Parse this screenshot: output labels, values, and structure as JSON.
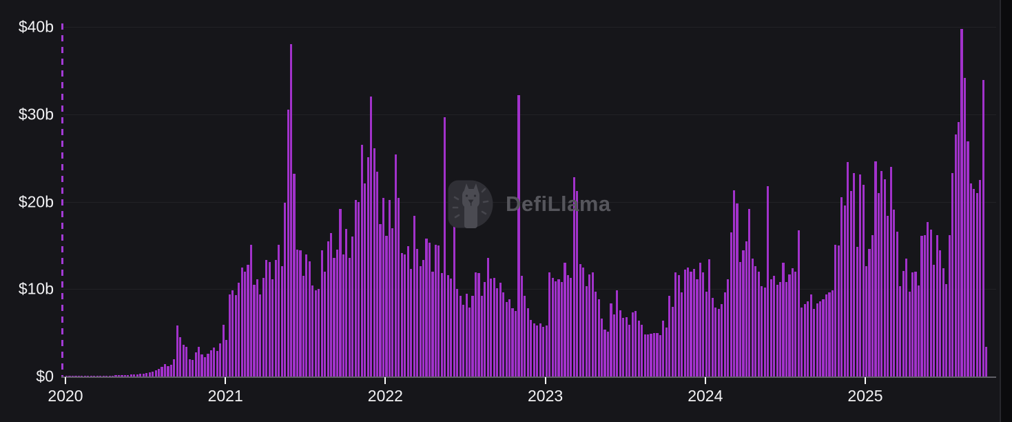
{
  "watermark": {
    "brand": "DefiLlama",
    "icon": "defillama-llama-logo"
  },
  "chart_data": {
    "type": "bar",
    "title": "",
    "unit": "USD billions",
    "granularity": "weekly",
    "legend": "none",
    "grid": "horizontal, faint",
    "bar_color": "#a232cb",
    "y_axis_dash_color": "#a33bd6",
    "x_axis": {
      "tick_labels": [
        "2020",
        "2021",
        "2022",
        "2023",
        "2024",
        "2025"
      ]
    },
    "y_axis": {
      "tick_labels": [
        "$0",
        "$10b",
        "$20b",
        "$30b",
        "$40b"
      ],
      "tick_values": [
        0,
        10,
        20,
        30,
        40
      ],
      "max": 40
    },
    "annotations": {
      "watermark": "DefiLlama"
    },
    "values": [
      0.02,
      0.02,
      0.03,
      0.03,
      0.03,
      0.04,
      0.04,
      0.05,
      0.05,
      0.06,
      0.07,
      0.08,
      0.08,
      0.09,
      0.1,
      0.11,
      0.12,
      0.13,
      0.15,
      0.16,
      0.18,
      0.2,
      0.22,
      0.25,
      0.28,
      0.32,
      0.38,
      0.45,
      0.55,
      0.7,
      0.9,
      1.1,
      1.4,
      1.15,
      1.35,
      2.0,
      5.8,
      4.5,
      3.6,
      3.4,
      2.0,
      1.9,
      2.8,
      3.4,
      2.5,
      2.2,
      2.6,
      3.0,
      3.3,
      2.9,
      3.8,
      5.9,
      4.2,
      9.4,
      9.9,
      9.3,
      10.7,
      12.5,
      12.0,
      12.8,
      15.1,
      10.5,
      11.1,
      9.4,
      11.3,
      13.3,
      13.1,
      11.1,
      13.3,
      15.1,
      12.6,
      19.9,
      30.5,
      38.0,
      23.2,
      14.5,
      14.4,
      11.5,
      14.0,
      13.2,
      10.4,
      9.9,
      10.0,
      14.4,
      12.0,
      15.5,
      16.4,
      13.6,
      14.5,
      19.2,
      14.0,
      16.9,
      13.6,
      16.0,
      20.2,
      20.0,
      26.5,
      22.1,
      25.1,
      32.0,
      26.1,
      23.4,
      17.4,
      20.4,
      16.1,
      20.2,
      17.0,
      25.4,
      20.4,
      14.1,
      14.0,
      14.9,
      12.3,
      18.4,
      14.6,
      12.6,
      13.3,
      15.8,
      15.3,
      12.0,
      15.1,
      15.0,
      11.8,
      29.7,
      11.6,
      11.2,
      21.1,
      10.0,
      9.2,
      8.2,
      9.5,
      7.9,
      9.2,
      11.9,
      11.8,
      9.2,
      10.8,
      13.6,
      11.2,
      11.3,
      10.1,
      10.7,
      9.6,
      8.5,
      8.8,
      7.8,
      7.5,
      32.2,
      11.5,
      9.2,
      7.8,
      6.5,
      6.1,
      5.8,
      6.1,
      5.7,
      5.8,
      11.9,
      11.3,
      10.9,
      11.1,
      10.8,
      13.0,
      11.6,
      11.3,
      22.8,
      21.2,
      12.9,
      12.5,
      10.3,
      11.7,
      11.9,
      9.7,
      8.8,
      6.6,
      5.4,
      5.1,
      8.4,
      7.1,
      9.9,
      7.6,
      6.7,
      6.8,
      5.9,
      7.3,
      7.5,
      6.4,
      5.9,
      4.8,
      4.8,
      4.9,
      5.0,
      5.0,
      4.7,
      6.4,
      5.6,
      9.2,
      8.0,
      11.9,
      11.6,
      9.6,
      12.2,
      12.5,
      12.0,
      12.3,
      11.1,
      13.0,
      11.9,
      9.7,
      13.4,
      9.0,
      7.9,
      7.7,
      8.3,
      9.6,
      11.1,
      16.5,
      21.3,
      19.8,
      13.1,
      14.4,
      15.5,
      19.2,
      13.5,
      12.6,
      12.0,
      10.3,
      10.2,
      21.8,
      11.1,
      11.5,
      10.5,
      10.8,
      13.0,
      10.8,
      11.7,
      12.4,
      12.0,
      16.7,
      7.9,
      8.3,
      8.6,
      9.4,
      7.7,
      8.4,
      8.6,
      8.8,
      9.4,
      9.6,
      9.9,
      15.1,
      15.0,
      20.5,
      19.6,
      24.5,
      21.2,
      23.3,
      14.8,
      23.1,
      21.9,
      12.6,
      14.6,
      16.2,
      24.6,
      21.0,
      23.5,
      22.6,
      18.4,
      24.0,
      19.1,
      16.6,
      10.3,
      12.1,
      13.5,
      9.7,
      11.9,
      12.0,
      10.4,
      16.1,
      16.2,
      17.7,
      16.8,
      12.8,
      16.2,
      14.4,
      12.4,
      10.6,
      16.2,
      23.3,
      27.7,
      29.1,
      39.8,
      34.2,
      26.9,
      22.1,
      21.5,
      21.0,
      22.5,
      33.9,
      3.4
    ]
  }
}
